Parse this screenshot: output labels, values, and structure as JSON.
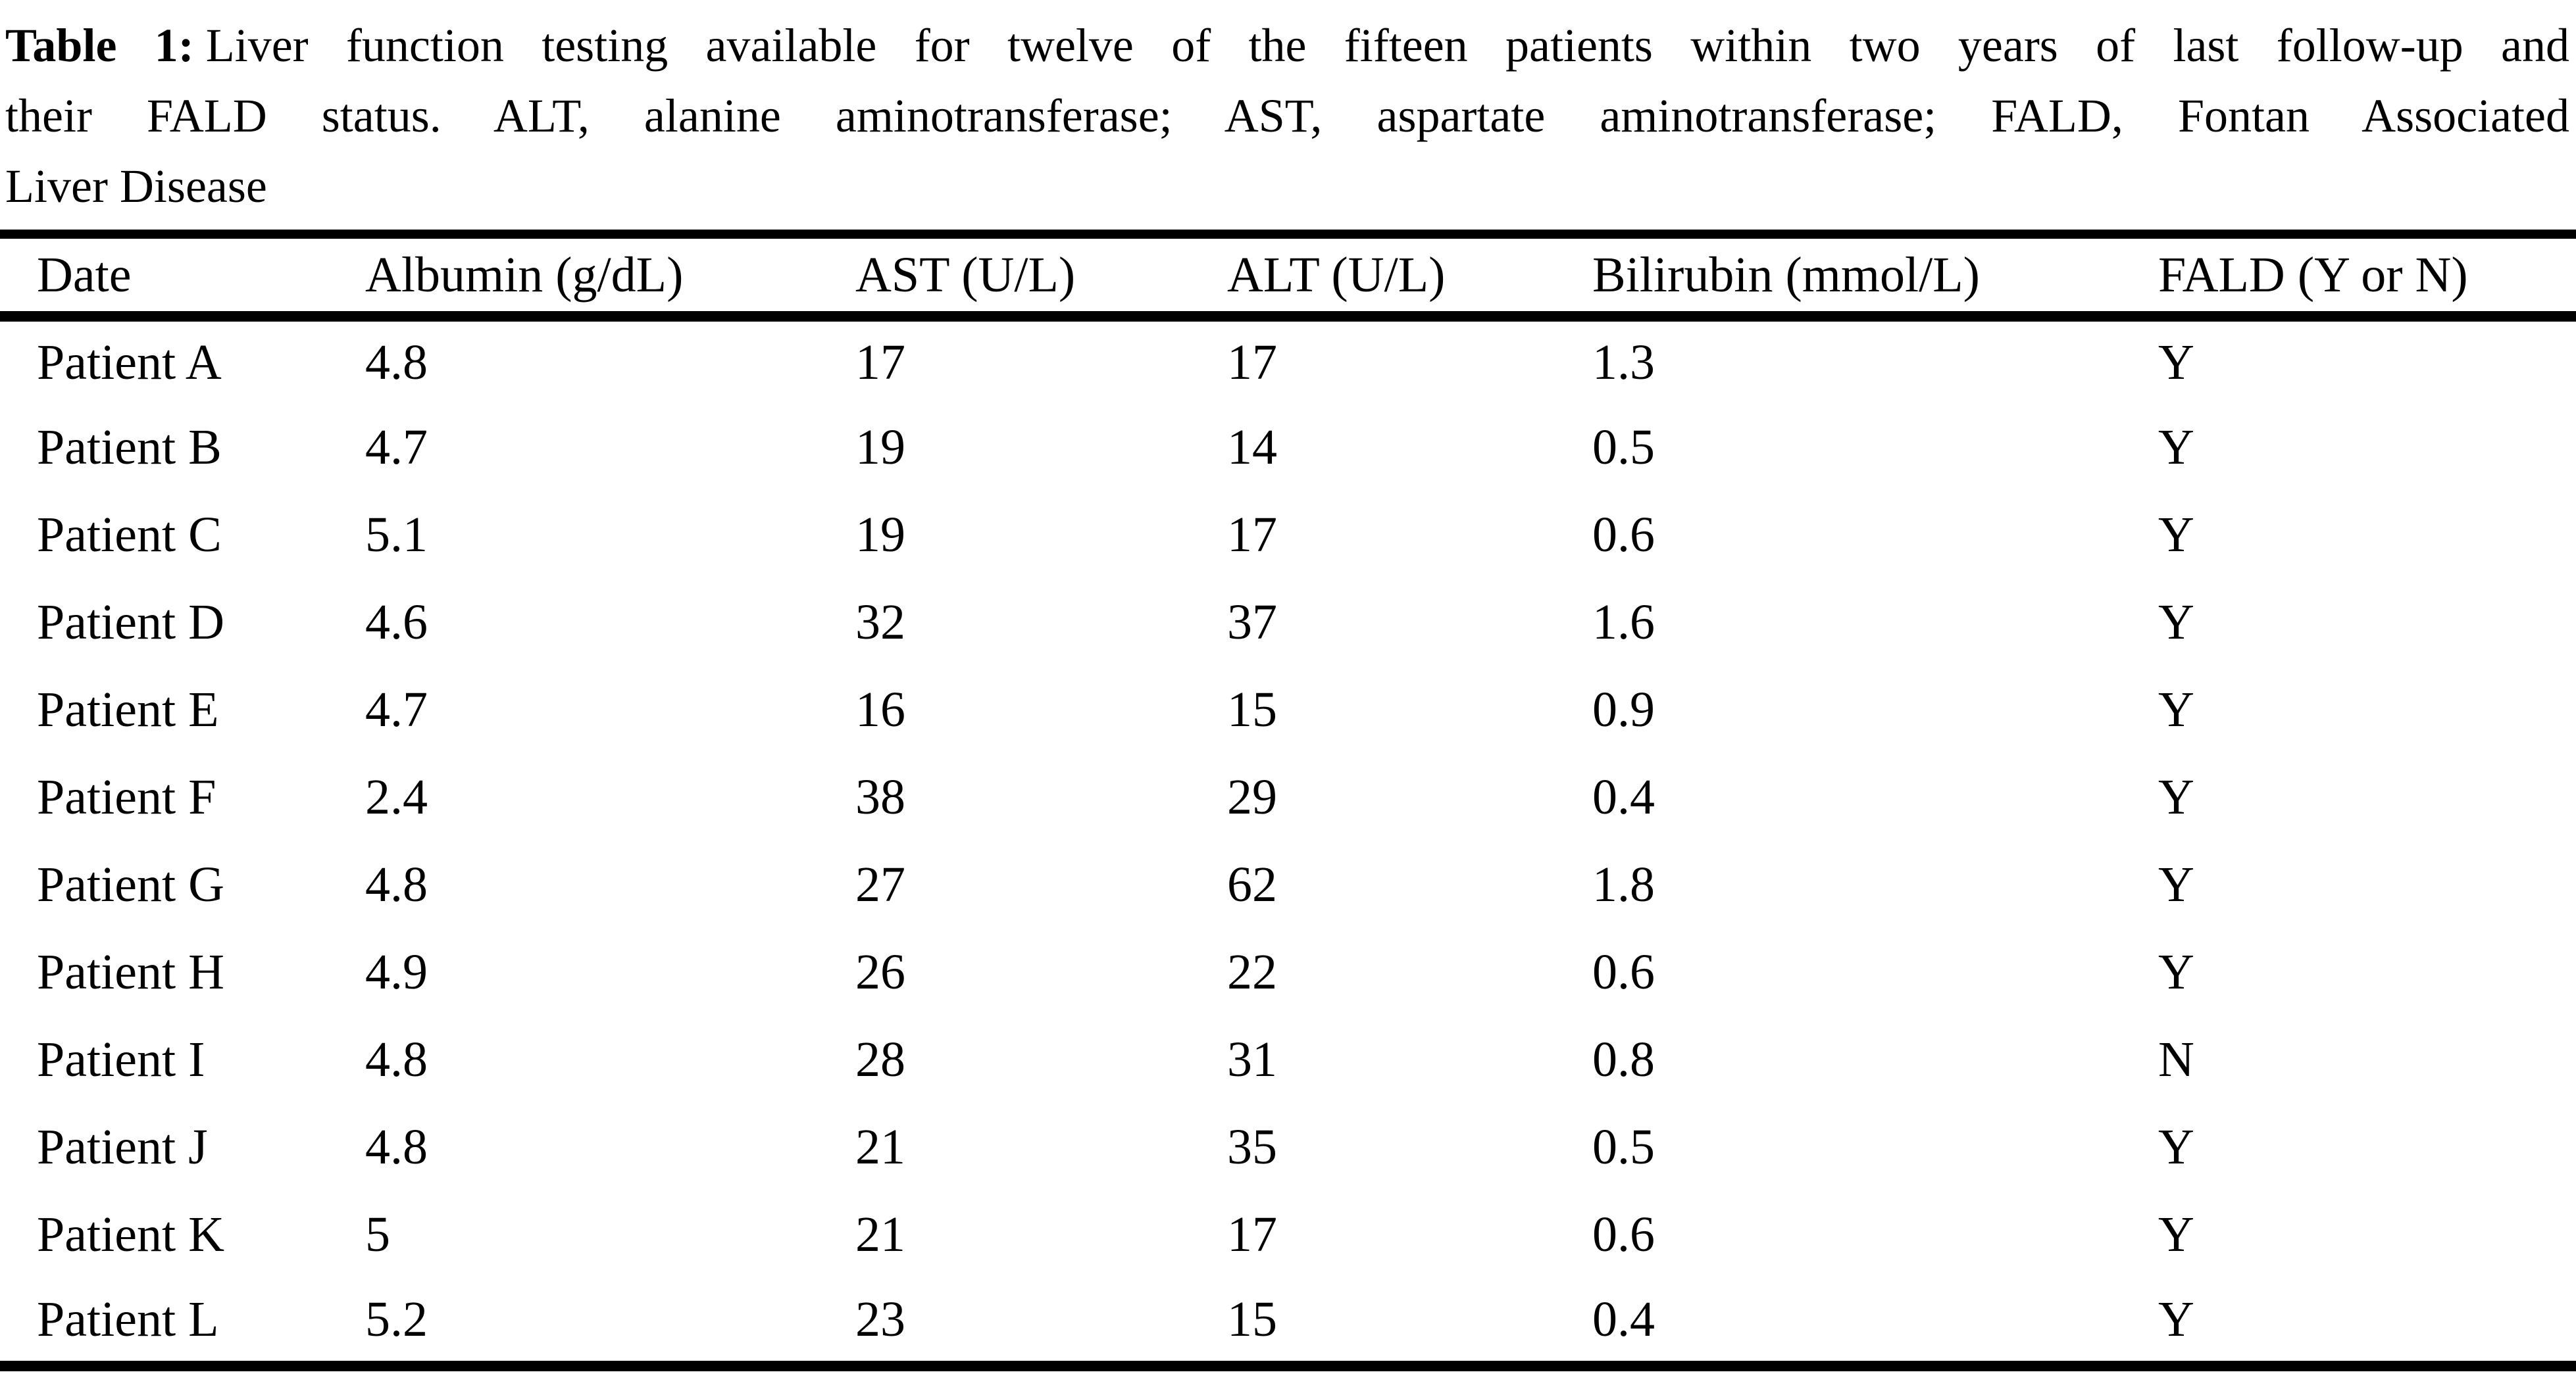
{
  "caption": {
    "label": "Table 1:",
    "lines": [
      "Liver function testing available for twelve of the fifteen patients within two years of last follow-up and",
      "their FALD status. ALT, alanine aminotransferase; AST, aspartate aminotransferase; FALD, Fontan Associated",
      "Liver Disease"
    ]
  },
  "table": {
    "columns": [
      "Date",
      "Albumin (g/dL)",
      "AST (U/L)",
      "ALT (U/L)",
      "Bilirubin (mmol/L)",
      "FALD (Y or N)"
    ],
    "column_keys": [
      "date",
      "albumin",
      "ast",
      "alt",
      "bilirubin",
      "fald"
    ],
    "rows": [
      [
        "Patient A",
        "4.8",
        "17",
        "17",
        "1.3",
        "Y"
      ],
      [
        "Patient B",
        "4.7",
        "19",
        "14",
        "0.5",
        "Y"
      ],
      [
        "Patient C",
        "5.1",
        "19",
        "17",
        "0.6",
        "Y"
      ],
      [
        "Patient D",
        "4.6",
        "32",
        "37",
        "1.6",
        "Y"
      ],
      [
        "Patient E",
        "4.7",
        "16",
        "15",
        "0.9",
        "Y"
      ],
      [
        "Patient F",
        "2.4",
        "38",
        "29",
        "0.4",
        "Y"
      ],
      [
        "Patient G",
        "4.8",
        "27",
        "62",
        "1.8",
        "Y"
      ],
      [
        "Patient H",
        "4.9",
        "26",
        "22",
        "0.6",
        "Y"
      ],
      [
        "Patient I",
        "4.8",
        "28",
        "31",
        "0.8",
        "N"
      ],
      [
        "Patient J",
        "4.8",
        "21",
        "35",
        "0.5",
        "Y"
      ],
      [
        "Patient K",
        "5",
        "21",
        "17",
        "0.6",
        "Y"
      ],
      [
        "Patient L",
        "5.2",
        "23",
        "15",
        "0.4",
        "Y"
      ]
    ]
  },
  "colors": {
    "background": "#ffffff",
    "text": "#000000",
    "rule": "#000000"
  },
  "chart_data": {
    "type": "table",
    "title": "Table 1: Liver function testing available for twelve of the fifteen patients within two years of last follow-up and their FALD status. ALT, alanine aminotransferase; AST, aspartate aminotransferase; FALD, Fontan Associated Liver Disease",
    "columns": [
      "Date",
      "Albumin (g/dL)",
      "AST (U/L)",
      "ALT (U/L)",
      "Bilirubin (mmol/L)",
      "FALD (Y or N)"
    ],
    "rows": [
      [
        "Patient A",
        4.8,
        17,
        17,
        1.3,
        "Y"
      ],
      [
        "Patient B",
        4.7,
        19,
        14,
        0.5,
        "Y"
      ],
      [
        "Patient C",
        5.1,
        19,
        17,
        0.6,
        "Y"
      ],
      [
        "Patient D",
        4.6,
        32,
        37,
        1.6,
        "Y"
      ],
      [
        "Patient E",
        4.7,
        16,
        15,
        0.9,
        "Y"
      ],
      [
        "Patient F",
        2.4,
        38,
        29,
        0.4,
        "Y"
      ],
      [
        "Patient G",
        4.8,
        27,
        62,
        1.8,
        "Y"
      ],
      [
        "Patient H",
        4.9,
        26,
        22,
        0.6,
        "Y"
      ],
      [
        "Patient I",
        4.8,
        28,
        31,
        0.8,
        "N"
      ],
      [
        "Patient J",
        4.8,
        21,
        35,
        0.5,
        "Y"
      ],
      [
        "Patient K",
        5,
        21,
        17,
        0.6,
        "Y"
      ],
      [
        "Patient L",
        5.2,
        23,
        15,
        0.4,
        "Y"
      ]
    ]
  }
}
